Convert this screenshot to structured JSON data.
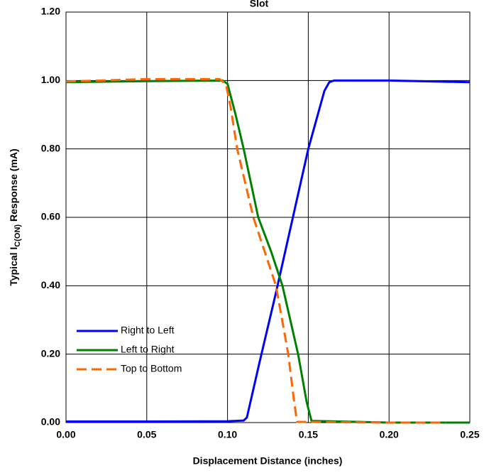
{
  "chart_data": {
    "type": "line",
    "title": "Slot",
    "xlabel": "Displacement Distance (inches)",
    "ylabel": [
      "Typical I",
      "C(ON)",
      " Response (mA)"
    ],
    "xlim": [
      0,
      0.25
    ],
    "xticks": [
      {
        "value": 0,
        "label": "0.00"
      },
      {
        "value": 0.05,
        "label": "0.05"
      },
      {
        "value": 0.1,
        "label": "0.10"
      },
      {
        "value": 0.15,
        "label": "0.15"
      },
      {
        "value": 0.2,
        "label": "0.20"
      },
      {
        "value": 0.25,
        "label": "0.25"
      }
    ],
    "ylim": [
      0,
      1.2
    ],
    "yticks": [
      {
        "value": 0,
        "label": "0.00"
      },
      {
        "value": 0.2,
        "label": "0.20"
      },
      {
        "value": 0.4,
        "label": "0.40"
      },
      {
        "value": 0.6,
        "label": "0.60"
      },
      {
        "value": 0.8,
        "label": "0.80"
      },
      {
        "value": 1,
        "label": "1.00"
      },
      {
        "value": 1.2,
        "label": "1.20"
      }
    ],
    "grid": true,
    "legend": "lower left",
    "series": [
      {
        "name": "Right to Left",
        "color": "#0000ff",
        "dash": false,
        "x": [
          0,
          0.05,
          0.1,
          0.11,
          0.112,
          0.12,
          0.13,
          0.14,
          0.15,
          0.16,
          0.163,
          0.166,
          0.2,
          0.25
        ],
        "values": [
          0.003,
          0.003,
          0.004,
          0.006,
          0.015,
          0.18,
          0.38,
          0.59,
          0.8,
          0.97,
          0.995,
          1.0,
          1.0,
          0.995
        ]
      },
      {
        "name": "Left to Right",
        "color": "#008000",
        "dash": false,
        "x": [
          0,
          0.05,
          0.097,
          0.1,
          0.105,
          0.11,
          0.119,
          0.127,
          0.134,
          0.1437,
          0.149,
          0.152,
          0.2,
          0.25
        ],
        "values": [
          0.995,
          0.998,
          1.0,
          0.99,
          0.9,
          0.8,
          0.6,
          0.5,
          0.4,
          0.2,
          0.06,
          0.005,
          0.0,
          0.0
        ]
      },
      {
        "name": "Top to Bottom",
        "color": "#ff6600",
        "dash": true,
        "x": [
          0,
          0.05,
          0.095,
          0.099,
          0.102,
          0.106,
          0.116,
          0.13,
          0.1376,
          0.141,
          0.143,
          0.2,
          0.235
        ],
        "values": [
          0.997,
          1.004,
          1.004,
          0.99,
          0.92,
          0.8,
          0.6,
          0.4,
          0.2,
          0.07,
          0.002,
          0.0,
          0.0
        ]
      }
    ]
  }
}
